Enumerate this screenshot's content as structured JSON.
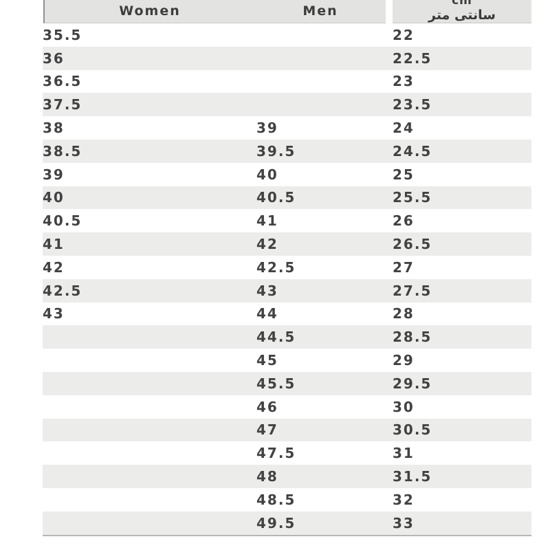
{
  "table": {
    "headers": {
      "women": "Women",
      "men": "Men",
      "cm_en": "cm",
      "cm_fa": "سانتی متر"
    },
    "rows": [
      {
        "women": "35.5",
        "men": "",
        "cm": "22"
      },
      {
        "women": "36",
        "men": "",
        "cm": "22.5"
      },
      {
        "women": "36.5",
        "men": "",
        "cm": "23"
      },
      {
        "women": "37.5",
        "men": "",
        "cm": "23.5"
      },
      {
        "women": "38",
        "men": "39",
        "cm": "24"
      },
      {
        "women": "38.5",
        "men": "39.5",
        "cm": "24.5"
      },
      {
        "women": "39",
        "men": "40",
        "cm": "25"
      },
      {
        "women": "40",
        "men": "40.5",
        "cm": "25.5"
      },
      {
        "women": "40.5",
        "men": "41",
        "cm": "26"
      },
      {
        "women": "41",
        "men": "42",
        "cm": "26.5"
      },
      {
        "women": "42",
        "men": "42.5",
        "cm": "27"
      },
      {
        "women": "42.5",
        "men": "43",
        "cm": "27.5"
      },
      {
        "women": "43",
        "men": "44",
        "cm": "28"
      },
      {
        "women": "",
        "men": "44.5",
        "cm": "28.5"
      },
      {
        "women": "",
        "men": "45",
        "cm": "29"
      },
      {
        "women": "",
        "men": "45.5",
        "cm": "29.5"
      },
      {
        "women": "",
        "men": "46",
        "cm": "30"
      },
      {
        "women": "",
        "men": "47",
        "cm": "30.5"
      },
      {
        "women": "",
        "men": "47.5",
        "cm": "31"
      },
      {
        "women": "",
        "men": "48",
        "cm": "31.5"
      },
      {
        "women": "",
        "men": "48.5",
        "cm": "32"
      },
      {
        "women": "",
        "men": "49.5",
        "cm": "33"
      }
    ]
  },
  "colors": {
    "header_bg": "#e3e3e1",
    "stripe_bg": "#ececeb",
    "text": "#424242",
    "header_left_border": "#909090",
    "bottom_line": "#b6b6b6"
  }
}
